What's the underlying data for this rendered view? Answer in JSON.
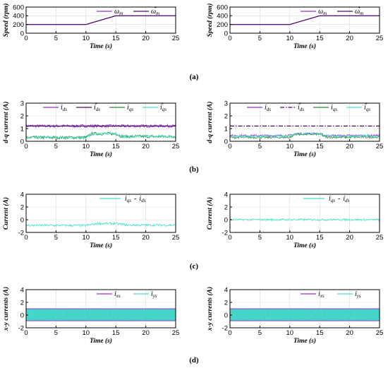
{
  "panel_labels": [
    "(a)",
    "(b)",
    "(c)",
    "(d)"
  ],
  "colors": {
    "purple": "#9b30d9",
    "dark_purple": "#4b0a6b",
    "green": "#2e8b3c",
    "cyan": "#40e0c8"
  },
  "chart_data": [
    {
      "type": "line",
      "panel": "a",
      "xlabel": "Time (s)",
      "ylabel": "Speed (rpm)",
      "xlim": [
        0,
        25
      ],
      "ylim": [
        0,
        600
      ],
      "xticks": [
        "0",
        "5",
        "10",
        "15",
        "20",
        "25"
      ],
      "yticks": [
        "0",
        "200",
        "400",
        "600"
      ],
      "grid": true,
      "legend_placement": "top-right",
      "series": [
        {
          "name": "ω",
          "sub": "m",
          "sup": "",
          "color": "#9b30d9",
          "style": "solid",
          "x": [
            0,
            10,
            15,
            25
          ],
          "y": [
            200,
            200,
            400,
            400
          ]
        },
        {
          "name": "ω",
          "sub": "m",
          "sup": "*",
          "color": "#4b0a6b",
          "style": "solid",
          "x": [
            0,
            10,
            15,
            25
          ],
          "y": [
            200,
            200,
            400,
            400
          ]
        }
      ]
    },
    {
      "type": "line",
      "panel": "a",
      "xlabel": "Time (s)",
      "ylabel": "Speed (rpm)",
      "xlim": [
        0,
        25
      ],
      "ylim": [
        0,
        600
      ],
      "xticks": [
        "0",
        "5",
        "10",
        "15",
        "20",
        "25"
      ],
      "yticks": [
        "0",
        "200",
        "400",
        "600"
      ],
      "grid": true,
      "legend_placement": "top-right",
      "series": [
        {
          "name": "ω",
          "sub": "m",
          "sup": "",
          "color": "#9b30d9",
          "style": "solid",
          "x": [
            0,
            10,
            15,
            25
          ],
          "y": [
            200,
            200,
            400,
            400
          ]
        },
        {
          "name": "ω",
          "sub": "m",
          "sup": "*",
          "color": "#4b0a6b",
          "style": "solid",
          "x": [
            0,
            10,
            15,
            25
          ],
          "y": [
            200,
            200,
            400,
            400
          ]
        }
      ]
    },
    {
      "type": "line",
      "panel": "b",
      "xlabel": "Time (s)",
      "ylabel": "d-q current (A)",
      "xlim": [
        0,
        25
      ],
      "ylim": [
        0,
        3
      ],
      "xticks": [
        "0",
        "5",
        "10",
        "15",
        "20",
        "25"
      ],
      "yticks": [
        "0",
        "1",
        "2",
        "3"
      ],
      "grid": true,
      "legend_placement": "top",
      "series": [
        {
          "name": "i",
          "sub": "ds",
          "sup": "",
          "color": "#9b30d9",
          "style": "solid",
          "noise": 0.12,
          "x": [
            0,
            25
          ],
          "y": [
            1.2,
            1.2
          ]
        },
        {
          "name": "i",
          "sub": "ds",
          "sup": "*",
          "color": "#4b0a6b",
          "style": "solid",
          "x": [
            0,
            25
          ],
          "y": [
            1.2,
            1.2
          ]
        },
        {
          "name": "i",
          "sub": "qs",
          "sup": "",
          "color": "#2e8b3c",
          "style": "solid",
          "noise": 0.12,
          "x": [
            0,
            10,
            11,
            15,
            16,
            25
          ],
          "y": [
            0.3,
            0.3,
            0.6,
            0.6,
            0.38,
            0.38
          ]
        },
        {
          "name": "i",
          "sub": "qs",
          "sup": "*",
          "color": "#40e0c8",
          "style": "solid",
          "noise": 0.1,
          "x": [
            0,
            10,
            11,
            15,
            16,
            25
          ],
          "y": [
            0.3,
            0.3,
            0.6,
            0.6,
            0.38,
            0.38
          ]
        }
      ]
    },
    {
      "type": "line",
      "panel": "b",
      "xlabel": "Time (s)",
      "ylabel": "d-q current (A)",
      "xlim": [
        0,
        25
      ],
      "ylim": [
        0,
        3
      ],
      "xticks": [
        "0",
        "5",
        "10",
        "15",
        "20",
        "25"
      ],
      "yticks": [
        "0",
        "1",
        "2",
        "3"
      ],
      "grid": true,
      "legend_placement": "top",
      "series": [
        {
          "name": "i",
          "sub": "ds",
          "sup": "",
          "color": "#9b30d9",
          "style": "solid",
          "noise": 0.08,
          "x": [
            0,
            10,
            11,
            15,
            16,
            25
          ],
          "y": [
            0.45,
            0.45,
            0.6,
            0.6,
            0.45,
            0.45
          ]
        },
        {
          "name": "i",
          "sub": "ds",
          "sup": "*",
          "color": "#4b0a6b",
          "style": "dashdot",
          "x": [
            0,
            25
          ],
          "y": [
            1.2,
            1.2
          ]
        },
        {
          "name": "i",
          "sub": "qs",
          "sup": "",
          "color": "#2e8b3c",
          "style": "solid",
          "noise": 0.08,
          "x": [
            0,
            10,
            11,
            15,
            16,
            25
          ],
          "y": [
            0.3,
            0.3,
            0.55,
            0.55,
            0.32,
            0.32
          ]
        },
        {
          "name": "i",
          "sub": "qs",
          "sup": "*",
          "color": "#40e0c8",
          "style": "solid",
          "noise": 0.08,
          "x": [
            0,
            10,
            11,
            15,
            16,
            25
          ],
          "y": [
            0.4,
            0.4,
            0.62,
            0.62,
            0.42,
            0.42
          ]
        }
      ]
    },
    {
      "type": "line",
      "panel": "c",
      "xlabel": "Time (s)",
      "ylabel": "Current (A)",
      "xlim": [
        0,
        25
      ],
      "ylim": [
        -2,
        4
      ],
      "xticks": [
        "0",
        "5",
        "10",
        "15",
        "20",
        "25"
      ],
      "yticks": [
        "-2",
        "0",
        "2",
        "4"
      ],
      "grid": true,
      "legend_placement": "top-right",
      "series": [
        {
          "name": "i",
          "sub": "qs",
          "sup": "",
          "name2": "i",
          "sub2": "ds",
          "color": "#40e0c8",
          "style": "solid",
          "noise": 0.18,
          "x": [
            0,
            10,
            12,
            15,
            17,
            25
          ],
          "y": [
            -0.9,
            -0.9,
            -0.6,
            -0.6,
            -0.85,
            -0.85
          ]
        }
      ]
    },
    {
      "type": "line",
      "panel": "c",
      "xlabel": "Time (s)",
      "ylabel": "Current (A)",
      "xlim": [
        0,
        25
      ],
      "ylim": [
        -2,
        4
      ],
      "xticks": [
        "0",
        "5",
        "10",
        "15",
        "20",
        "25"
      ],
      "yticks": [
        "-2",
        "0",
        "2",
        "4"
      ],
      "grid": true,
      "legend_placement": "top-right",
      "series": [
        {
          "name": "i",
          "sub": "qs",
          "sup": "",
          "name2": "i",
          "sub2": "ds",
          "color": "#40e0c8",
          "style": "solid",
          "noise": 0.15,
          "x": [
            0,
            25
          ],
          "y": [
            0.0,
            0.0
          ]
        }
      ]
    },
    {
      "type": "line",
      "panel": "d",
      "xlabel": "Time (s)",
      "ylabel": "x-y currents (A)",
      "xlim": [
        0,
        25
      ],
      "ylim": [
        -2,
        4
      ],
      "xticks": [
        "0",
        "5",
        "10",
        "15",
        "20",
        "25"
      ],
      "yticks": [
        "-2",
        "0",
        "2",
        "4"
      ],
      "grid": true,
      "legend_placement": "top-right",
      "series": [
        {
          "name": "i",
          "sub": "xs",
          "sup": "",
          "color": "#9b30d9",
          "style": "band",
          "band": [
            -0.95,
            1.05
          ],
          "x": [
            0,
            25
          ],
          "y": [
            0,
            0
          ]
        },
        {
          "name": "i",
          "sub": "ys",
          "sup": "",
          "color": "#40e0c8",
          "style": "band",
          "band": [
            -0.85,
            0.95
          ],
          "x": [
            0,
            25
          ],
          "y": [
            0,
            0
          ]
        }
      ]
    },
    {
      "type": "line",
      "panel": "d",
      "xlabel": "Time (s)",
      "ylabel": "x-y currents (A)",
      "xlim": [
        0,
        25
      ],
      "ylim": [
        -2,
        4
      ],
      "xticks": [
        "0",
        "5",
        "10",
        "15",
        "20",
        "25"
      ],
      "yticks": [
        "-2",
        "0",
        "2",
        "4"
      ],
      "grid": true,
      "legend_placement": "top-right",
      "series": [
        {
          "name": "i",
          "sub": "xs",
          "sup": "",
          "color": "#9b30d9",
          "style": "band",
          "band": [
            -0.95,
            1.05
          ],
          "x": [
            0,
            25
          ],
          "y": [
            0,
            0
          ]
        },
        {
          "name": "i",
          "sub": "ys",
          "sup": "",
          "color": "#40e0c8",
          "style": "band",
          "band": [
            -0.85,
            0.95
          ],
          "x": [
            0,
            25
          ],
          "y": [
            0,
            0
          ]
        }
      ]
    }
  ]
}
